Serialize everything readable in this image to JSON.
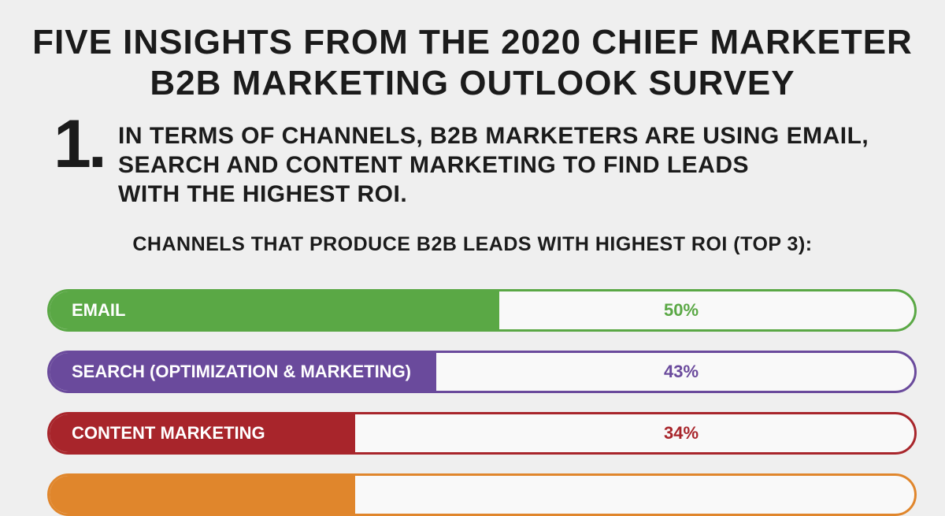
{
  "header": {
    "title_line1": "FIVE INSIGHTS FROM THE 2020 CHIEF MARKETER",
    "title_line2": "B2B MARKETING OUTLOOK SURVEY"
  },
  "insight": {
    "number": "1.",
    "line1": "IN TERMS OF CHANNELS, B2B MARKETERS ARE USING EMAIL,",
    "line2": "SEARCH AND CONTENT MARKETING TO FIND LEADS",
    "line3": "WITH THE HIGHEST ROI."
  },
  "chart_data": {
    "type": "bar",
    "orientation": "horizontal",
    "title": "CHANNELS THAT PRODUCE B2B LEADS WITH HIGHEST ROI (TOP 3):",
    "categories": [
      "EMAIL",
      "SEARCH (OPTIMIZATION & MARKETING)",
      "CONTENT MARKETING",
      ""
    ],
    "values": [
      50,
      43,
      34,
      34
    ],
    "value_labels": [
      "50%",
      "43%",
      "34%",
      ""
    ],
    "colors": [
      "#5aa845",
      "#6a4a9c",
      "#a8252b",
      "#e0862c"
    ],
    "xlim": [
      0,
      100
    ]
  }
}
